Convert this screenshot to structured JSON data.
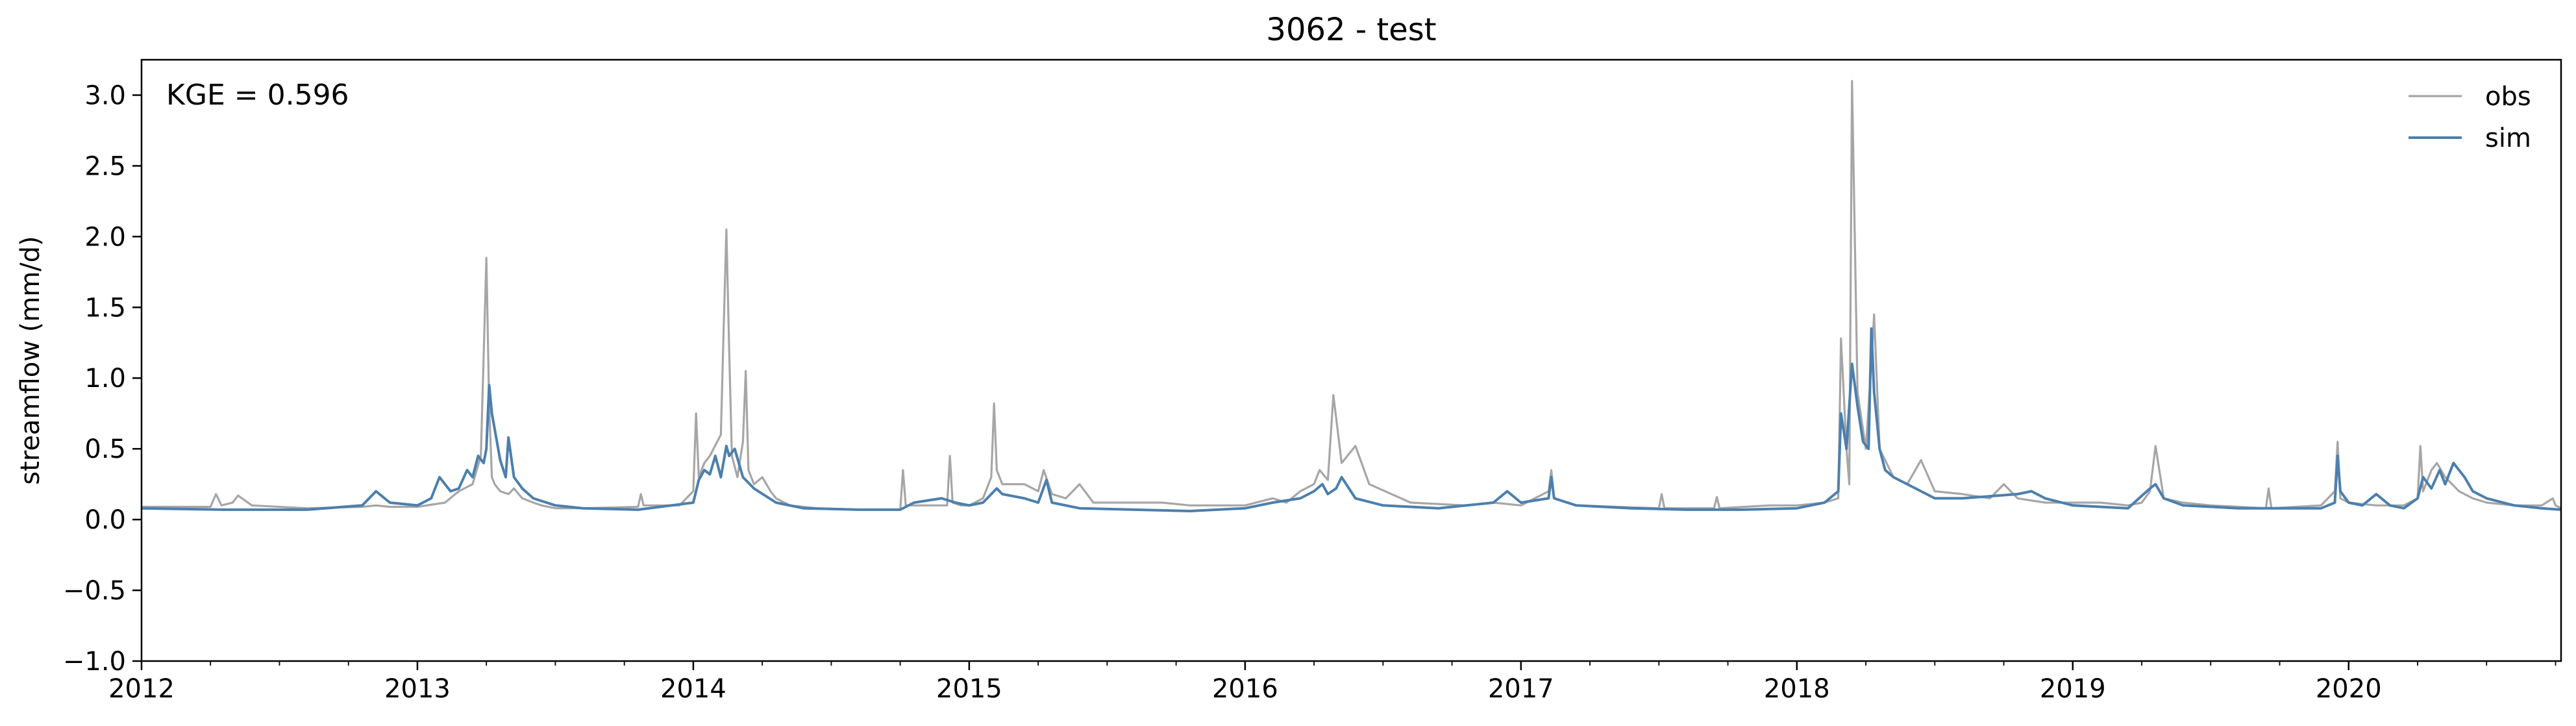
{
  "chart_data": {
    "type": "line",
    "title": "3062 - test",
    "xlabel": "",
    "ylabel": "streamflow (mm/d)",
    "annotation": "KGE = 0.596",
    "legend_position": "top-right",
    "grid": false,
    "xlim": [
      2012.0,
      2020.77
    ],
    "ylim": [
      -1.0,
      3.25
    ],
    "x_ticks": [
      {
        "value": 2012,
        "label": "2012"
      },
      {
        "value": 2013,
        "label": "2013"
      },
      {
        "value": 2014,
        "label": "2014"
      },
      {
        "value": 2015,
        "label": "2015"
      },
      {
        "value": 2016,
        "label": "2016"
      },
      {
        "value": 2017,
        "label": "2017"
      },
      {
        "value": 2018,
        "label": "2018"
      },
      {
        "value": 2019,
        "label": "2019"
      },
      {
        "value": 2020,
        "label": "2020"
      }
    ],
    "y_ticks": [
      {
        "value": -1.0,
        "label": "−1.0"
      },
      {
        "value": -0.5,
        "label": "−0.5"
      },
      {
        "value": 0.0,
        "label": "0.0"
      },
      {
        "value": 0.5,
        "label": "0.5"
      },
      {
        "value": 1.0,
        "label": "1.0"
      },
      {
        "value": 1.5,
        "label": "1.5"
      },
      {
        "value": 2.0,
        "label": "2.0"
      },
      {
        "value": 2.5,
        "label": "2.5"
      },
      {
        "value": 3.0,
        "label": "3.0"
      }
    ],
    "series": [
      {
        "name": "obs",
        "color": "#a6a6a6",
        "x": [
          2012.0,
          2012.25,
          2012.27,
          2012.29,
          2012.33,
          2012.35,
          2012.4,
          2012.6,
          2012.8,
          2012.85,
          2012.9,
          2013.0,
          2013.1,
          2013.15,
          2013.2,
          2013.23,
          2013.25,
          2013.26,
          2013.27,
          2013.28,
          2013.3,
          2013.33,
          2013.35,
          2013.38,
          2013.42,
          2013.45,
          2013.5,
          2013.6,
          2013.8,
          2013.81,
          2013.82,
          2013.95,
          2014.0,
          2014.01,
          2014.02,
          2014.04,
          2014.06,
          2014.1,
          2014.11,
          2014.12,
          2014.13,
          2014.14,
          2014.16,
          2014.18,
          2014.19,
          2014.2,
          2014.22,
          2014.25,
          2014.28,
          2014.3,
          2014.35,
          2014.45,
          2014.6,
          2014.75,
          2014.76,
          2014.77,
          2014.85,
          2014.92,
          2014.93,
          2014.94,
          2014.97,
          2015.0,
          2015.05,
          2015.08,
          2015.09,
          2015.1,
          2015.12,
          2015.2,
          2015.25,
          2015.27,
          2015.3,
          2015.35,
          2015.4,
          2015.45,
          2015.5,
          2015.6,
          2015.7,
          2015.8,
          2015.9,
          2016.0,
          2016.1,
          2016.15,
          2016.2,
          2016.25,
          2016.27,
          2016.3,
          2016.32,
          2016.35,
          2016.4,
          2016.45,
          2016.6,
          2016.8,
          2016.9,
          2017.0,
          2017.05,
          2017.1,
          2017.11,
          2017.12,
          2017.2,
          2017.5,
          2017.51,
          2017.52,
          2017.7,
          2017.71,
          2017.72,
          2017.9,
          2018.0,
          2018.1,
          2018.15,
          2018.16,
          2018.18,
          2018.19,
          2018.2,
          2018.22,
          2018.25,
          2018.27,
          2018.28,
          2018.3,
          2018.35,
          2018.4,
          2018.45,
          2018.5,
          2018.6,
          2018.7,
          2018.75,
          2018.8,
          2018.9,
          2019.0,
          2019.1,
          2019.2,
          2019.25,
          2019.28,
          2019.3,
          2019.33,
          2019.4,
          2019.5,
          2019.7,
          2019.71,
          2019.72,
          2019.9,
          2019.95,
          2019.96,
          2019.97,
          2020.0,
          2020.1,
          2020.2,
          2020.25,
          2020.26,
          2020.27,
          2020.3,
          2020.32,
          2020.35,
          2020.4,
          2020.45,
          2020.5,
          2020.6,
          2020.7,
          2020.74,
          2020.75,
          2020.77
        ],
        "y": [
          0.09,
          0.09,
          0.18,
          0.1,
          0.12,
          0.17,
          0.1,
          0.08,
          0.09,
          0.1,
          0.09,
          0.09,
          0.12,
          0.2,
          0.25,
          0.45,
          1.85,
          0.8,
          0.3,
          0.25,
          0.2,
          0.18,
          0.22,
          0.15,
          0.12,
          0.1,
          0.08,
          0.08,
          0.09,
          0.18,
          0.1,
          0.1,
          0.2,
          0.75,
          0.3,
          0.4,
          0.45,
          0.6,
          1.35,
          2.05,
          1.2,
          0.45,
          0.3,
          0.55,
          1.05,
          0.35,
          0.25,
          0.3,
          0.2,
          0.15,
          0.1,
          0.08,
          0.07,
          0.07,
          0.35,
          0.1,
          0.1,
          0.1,
          0.45,
          0.12,
          0.1,
          0.1,
          0.15,
          0.3,
          0.82,
          0.35,
          0.25,
          0.25,
          0.2,
          0.35,
          0.18,
          0.15,
          0.25,
          0.12,
          0.12,
          0.12,
          0.12,
          0.1,
          0.1,
          0.1,
          0.15,
          0.12,
          0.2,
          0.25,
          0.35,
          0.28,
          0.88,
          0.4,
          0.52,
          0.25,
          0.12,
          0.1,
          0.12,
          0.1,
          0.15,
          0.2,
          0.35,
          0.15,
          0.1,
          0.08,
          0.18,
          0.08,
          0.08,
          0.16,
          0.08,
          0.1,
          0.1,
          0.12,
          0.15,
          1.28,
          0.5,
          0.25,
          3.1,
          0.9,
          0.5,
          1.1,
          1.45,
          0.5,
          0.3,
          0.25,
          0.42,
          0.2,
          0.18,
          0.15,
          0.25,
          0.15,
          0.12,
          0.12,
          0.12,
          0.1,
          0.12,
          0.2,
          0.52,
          0.15,
          0.12,
          0.1,
          0.08,
          0.22,
          0.08,
          0.1,
          0.2,
          0.55,
          0.15,
          0.12,
          0.1,
          0.1,
          0.15,
          0.52,
          0.2,
          0.35,
          0.4,
          0.3,
          0.2,
          0.15,
          0.12,
          0.1,
          0.1,
          0.15,
          0.1,
          0.08
        ]
      },
      {
        "name": "sim",
        "color": "#4c7fad",
        "x": [
          2012.0,
          2012.3,
          2012.6,
          2012.8,
          2012.85,
          2012.9,
          2013.0,
          2013.05,
          2013.08,
          2013.12,
          2013.15,
          2013.18,
          2013.2,
          2013.22,
          2013.24,
          2013.25,
          2013.26,
          2013.27,
          2013.3,
          2013.32,
          2013.33,
          2013.35,
          2013.38,
          2013.42,
          2013.5,
          2013.6,
          2013.8,
          2014.0,
          2014.02,
          2014.04,
          2014.06,
          2014.08,
          2014.1,
          2014.12,
          2014.13,
          2014.15,
          2014.18,
          2014.22,
          2014.3,
          2014.4,
          2014.6,
          2014.75,
          2014.8,
          2014.9,
          2014.95,
          2015.0,
          2015.05,
          2015.1,
          2015.12,
          2015.2,
          2015.25,
          2015.28,
          2015.3,
          2015.4,
          2015.6,
          2015.8,
          2016.0,
          2016.1,
          2016.2,
          2016.25,
          2016.28,
          2016.3,
          2016.33,
          2016.35,
          2016.4,
          2016.5,
          2016.7,
          2016.9,
          2016.95,
          2017.0,
          2017.1,
          2017.11,
          2017.12,
          2017.2,
          2017.4,
          2017.6,
          2017.8,
          2018.0,
          2018.1,
          2018.15,
          2018.16,
          2018.18,
          2018.2,
          2018.22,
          2018.24,
          2018.26,
          2018.27,
          2018.28,
          2018.3,
          2018.32,
          2018.35,
          2018.4,
          2018.45,
          2018.5,
          2018.6,
          2018.8,
          2018.85,
          2018.9,
          2019.0,
          2019.2,
          2019.28,
          2019.3,
          2019.33,
          2019.4,
          2019.6,
          2019.9,
          2019.95,
          2019.96,
          2019.97,
          2020.0,
          2020.05,
          2020.1,
          2020.15,
          2020.2,
          2020.25,
          2020.27,
          2020.3,
          2020.33,
          2020.35,
          2020.38,
          2020.42,
          2020.45,
          2020.5,
          2020.6,
          2020.7,
          2020.77
        ],
        "y": [
          0.08,
          0.07,
          0.07,
          0.1,
          0.2,
          0.12,
          0.1,
          0.15,
          0.3,
          0.2,
          0.22,
          0.35,
          0.3,
          0.45,
          0.4,
          0.5,
          0.95,
          0.75,
          0.42,
          0.3,
          0.58,
          0.3,
          0.22,
          0.15,
          0.1,
          0.08,
          0.07,
          0.12,
          0.28,
          0.35,
          0.32,
          0.45,
          0.3,
          0.52,
          0.45,
          0.5,
          0.3,
          0.22,
          0.12,
          0.08,
          0.07,
          0.07,
          0.12,
          0.15,
          0.12,
          0.1,
          0.12,
          0.22,
          0.18,
          0.15,
          0.12,
          0.28,
          0.12,
          0.08,
          0.07,
          0.06,
          0.08,
          0.12,
          0.15,
          0.2,
          0.25,
          0.18,
          0.22,
          0.3,
          0.15,
          0.1,
          0.08,
          0.12,
          0.2,
          0.12,
          0.15,
          0.3,
          0.15,
          0.1,
          0.08,
          0.07,
          0.07,
          0.08,
          0.12,
          0.2,
          0.75,
          0.5,
          1.1,
          0.8,
          0.55,
          0.5,
          1.35,
          0.9,
          0.5,
          0.35,
          0.3,
          0.25,
          0.2,
          0.15,
          0.15,
          0.18,
          0.2,
          0.15,
          0.1,
          0.08,
          0.22,
          0.25,
          0.15,
          0.1,
          0.08,
          0.08,
          0.12,
          0.45,
          0.2,
          0.12,
          0.1,
          0.18,
          0.1,
          0.08,
          0.15,
          0.3,
          0.22,
          0.35,
          0.25,
          0.4,
          0.3,
          0.2,
          0.15,
          0.1,
          0.08,
          0.07
        ]
      }
    ]
  }
}
